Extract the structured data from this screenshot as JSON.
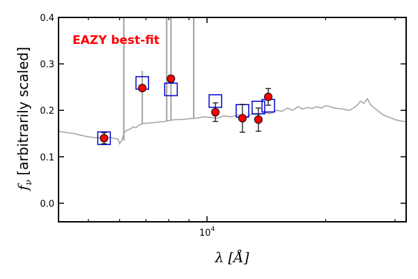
{
  "chart_data": {
    "type": "scatter",
    "title": "",
    "xlabel": "λ [Å]",
    "ylabel": "f_ν [arbitrarily scaled]",
    "ylabel_symbol": "f",
    "ylabel_subscript": "ν",
    "ylabel_text": "[arbitrarily scaled]",
    "xscale": "log",
    "xlim": [
      4200,
      32000
    ],
    "ylim": [
      -0.04,
      0.4
    ],
    "yticks": [
      0.0,
      0.1,
      0.2,
      0.3,
      0.4
    ],
    "ytick_labels": [
      "0.0",
      "0.1",
      "0.2",
      "0.3",
      "0.4"
    ],
    "xtick_label": "10",
    "xtick_label_exp": "4",
    "xtick_value": 10000,
    "grid": false,
    "annotation": {
      "text": "EAZY best-fit",
      "color": "#ff0000"
    },
    "colors": {
      "model": "#a0a0a0",
      "observed": "#ff0000",
      "model_flux": "#0000cc"
    },
    "series": [
      {
        "kind": "spectrum",
        "x": [
          4200,
          4400,
          4600,
          4800,
          5000,
          5200,
          5400,
          5600,
          5800,
          5950,
          6000,
          6080,
          6150,
          6200,
          6300,
          6400,
          6500,
          6600,
          6700,
          6800,
          6900,
          7000,
          7200,
          7400,
          7600,
          7800,
          8000,
          8300,
          8600,
          9000,
          9400,
          9800,
          10200,
          10600,
          11000,
          11500,
          12000,
          12500,
          13000,
          13500,
          14000,
          14500,
          15000,
          15500,
          16000,
          16500,
          17000,
          17500,
          18000,
          18500,
          19000,
          19500,
          20000,
          20500,
          21000,
          22000,
          23000,
          24000,
          24500,
          25000,
          25500,
          26000,
          27000,
          28000,
          29000,
          30000,
          31000,
          32000
        ],
        "y": [
          0.155,
          0.152,
          0.15,
          0.146,
          0.143,
          0.141,
          0.141,
          0.142,
          0.14,
          0.138,
          0.128,
          0.135,
          0.15,
          0.155,
          0.158,
          0.16,
          0.165,
          0.162,
          0.168,
          0.17,
          0.172,
          0.172,
          0.173,
          0.174,
          0.175,
          0.176,
          0.178,
          0.18,
          0.18,
          0.182,
          0.183,
          0.186,
          0.185,
          0.183,
          0.188,
          0.186,
          0.19,
          0.185,
          0.192,
          0.19,
          0.195,
          0.193,
          0.2,
          0.198,
          0.205,
          0.2,
          0.208,
          0.203,
          0.206,
          0.204,
          0.208,
          0.205,
          0.21,
          0.208,
          0.205,
          0.203,
          0.2,
          0.21,
          0.22,
          0.215,
          0.225,
          0.212,
          0.2,
          0.19,
          0.185,
          0.18,
          0.177,
          0.176
        ]
      },
      {
        "kind": "emission_lines",
        "x": [
          6150,
          6850,
          7900,
          8100,
          9250
        ],
        "y_top": [
          0.4,
          0.285,
          0.4,
          0.4,
          0.4
        ]
      },
      {
        "kind": "model_flux",
        "x": [
          5480,
          6850,
          8100,
          10500,
          12300,
          13500,
          14300
        ],
        "y": [
          0.14,
          0.259,
          0.245,
          0.22,
          0.199,
          0.206,
          0.21
        ]
      },
      {
        "kind": "observed",
        "x": [
          5480,
          6850,
          8100,
          10500,
          12300,
          13500,
          14300
        ],
        "y": [
          0.14,
          0.248,
          0.268,
          0.196,
          0.183,
          0.18,
          0.229
        ],
        "yerr": [
          0.012,
          0.006,
          0.007,
          0.02,
          0.03,
          0.025,
          0.018
        ]
      }
    ]
  }
}
